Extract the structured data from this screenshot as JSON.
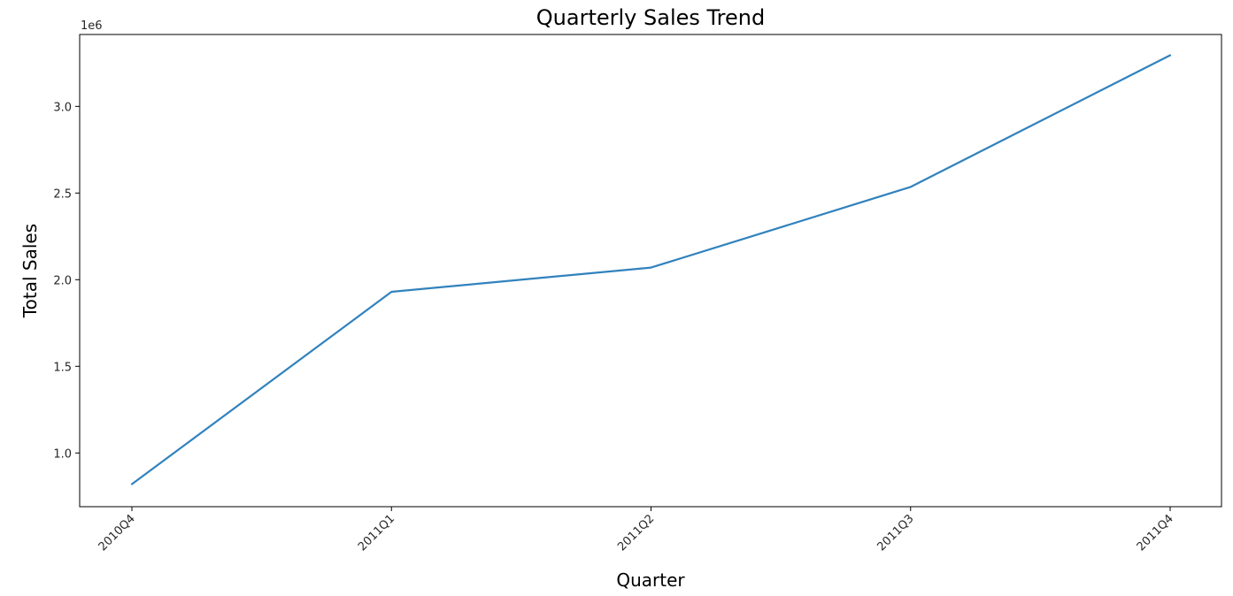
{
  "chart_data": {
    "type": "line",
    "title": "Quarterly Sales Trend",
    "xlabel": "Quarter",
    "ylabel": "Total Sales",
    "y_offset_label": "1e6",
    "categories": [
      "2010Q4",
      "2011Q1",
      "2011Q2",
      "2011Q3",
      "2011Q4"
    ],
    "series": [
      {
        "values": [
          820000,
          1930000,
          2070000,
          2535000,
          3295000
        ]
      }
    ],
    "ylim": [
      690000,
      3415000
    ],
    "yticks": [
      1000000,
      1500000,
      2000000,
      2500000,
      3000000
    ],
    "ytick_labels": [
      "1.0",
      "1.5",
      "2.0",
      "2.5",
      "3.0"
    ],
    "grid": false,
    "colors": {
      "line": "#3182bd",
      "axes": "#000000"
    }
  }
}
